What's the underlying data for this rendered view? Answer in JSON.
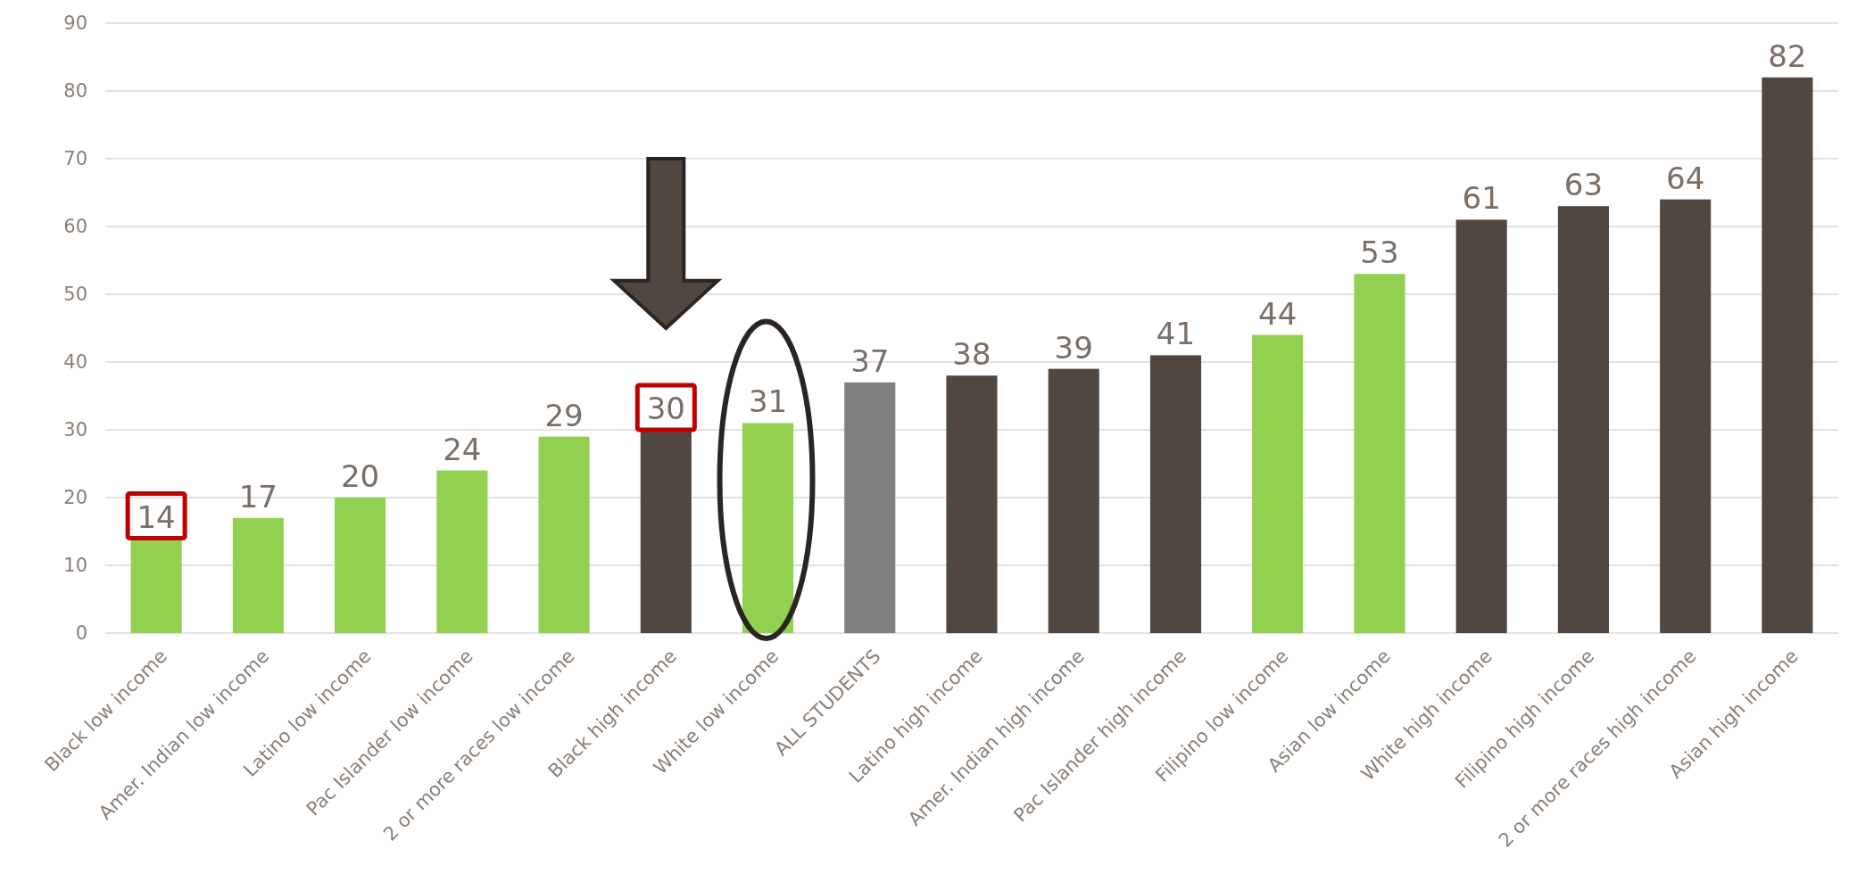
{
  "chart_data": {
    "type": "bar",
    "categories": [
      "Black low income",
      "Amer. Indian low income",
      "Latino low income",
      "Pac Islander low income",
      "2 or more races low income",
      "Black high income",
      "White low income",
      "ALL STUDENTS",
      "Latino high income",
      "Amer. Indian high income",
      "Pac Islander high income",
      "Filipino low income",
      "Asian low income",
      "White high income",
      "Filipino high income",
      "2 or more races high income",
      "Asian high income"
    ],
    "values": [
      14,
      17,
      20,
      24,
      29,
      30,
      31,
      37,
      38,
      39,
      41,
      44,
      53,
      61,
      63,
      64,
      82
    ],
    "colors": [
      "#92d050",
      "#92d050",
      "#92d050",
      "#92d050",
      "#92d050",
      "#504741",
      "#92d050",
      "#7f7f7f",
      "#504741",
      "#504741",
      "#504741",
      "#92d050",
      "#92d050",
      "#504741",
      "#504741",
      "#504741",
      "#504741"
    ],
    "data_labels": true,
    "ylim": [
      0,
      90
    ],
    "yticks": [
      0,
      10,
      20,
      30,
      40,
      50,
      60,
      70,
      80,
      90
    ],
    "grid": "y"
  }
}
